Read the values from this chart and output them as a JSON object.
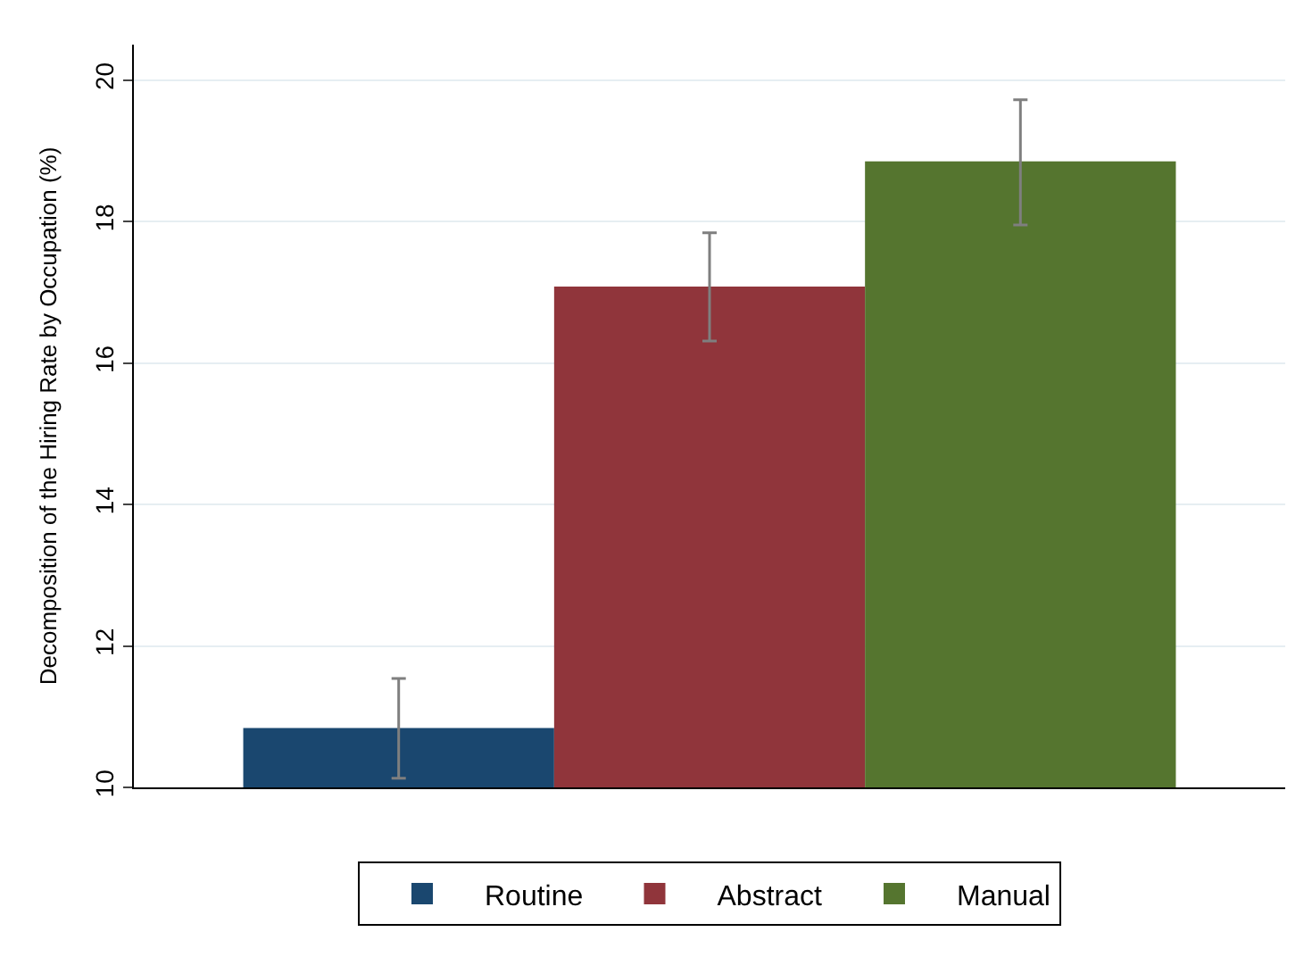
{
  "chart_data": {
    "type": "bar",
    "ylabel": "Decomposition of the Hiring Rate by Occupation (%)",
    "categories": [
      null
    ],
    "series": [
      {
        "name": "Routine",
        "color": "#1a476f",
        "values": [
          10.84
        ],
        "errors": [
          [
            10.13,
            11.54
          ]
        ]
      },
      {
        "name": "Abstract",
        "color": "#90353b",
        "values": [
          17.08
        ],
        "errors": [
          [
            16.31,
            17.84
          ]
        ]
      },
      {
        "name": "Manual",
        "color": "#55752f",
        "values": [
          18.85
        ],
        "errors": [
          [
            17.95,
            19.72
          ]
        ]
      }
    ],
    "ylim": [
      10,
      20.5
    ],
    "yticks": [
      10,
      12,
      14,
      16,
      18,
      20
    ],
    "grid": "y",
    "legend": "bottom"
  }
}
